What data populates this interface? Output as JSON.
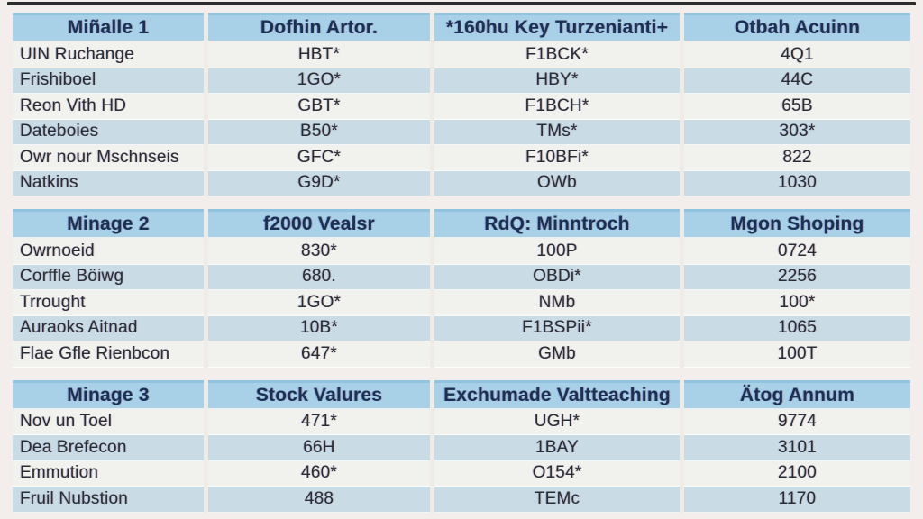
{
  "page": {
    "kind": "stacked-data-tables",
    "palette": {
      "header_bg": "#a8d1e7",
      "header_text": "#1b3055",
      "row_light_bg": "#f1f1ed",
      "row_blue_bg": "#c9dce5",
      "cell_text": "#272d36",
      "page_bg": "#f3eeec",
      "top_line": "#2d2c2c",
      "bottom_strip_bg": "#dfe9ee"
    }
  },
  "sections": [
    {
      "headers": [
        "Miñalle 1",
        "Dofhin Artor.",
        "*160hu Key Turzenianti+",
        "Otbah Acuinn"
      ],
      "rows": [
        [
          "UIN Ruchange",
          "HBT*",
          "F1BCK*",
          "4Q1"
        ],
        [
          "Frishiboel",
          "1GO*",
          "HBY*",
          "44C"
        ],
        [
          "Reon Vith HD",
          "GBT*",
          "F1BCH*",
          "65B"
        ],
        [
          "Dateboies",
          "B50*",
          "TMs*",
          "303*"
        ],
        [
          "Owr nour Mschnseis",
          "GFC*",
          "F10BFi*",
          "822"
        ],
        [
          "Natkins",
          "G9D*",
          "OWb",
          "1030"
        ]
      ]
    },
    {
      "headers": [
        "Minage 2",
        "f2000 Vealsr",
        "RdQ: Minntroch",
        "Mgon Shoping"
      ],
      "rows": [
        [
          "Owrnoeid",
          "830*",
          "100P",
          "0724"
        ],
        [
          "Corffle Böiwg",
          "680.",
          "OBDi*",
          "2256"
        ],
        [
          "Trrought",
          "1GO*",
          "NMb",
          "100*"
        ],
        [
          "Auraoks Aitnad",
          "10B*",
          "F1BSPii*",
          "1065"
        ],
        [
          "Flae Gfle Rienbcon",
          "647*",
          "GMb",
          "100T"
        ]
      ]
    },
    {
      "headers": [
        "Minage 3",
        "Stock Valures",
        "Exchumade Valtteaching",
        "Ätog Annum"
      ],
      "rows": [
        [
          "Nov un Toel",
          "471*",
          "UGH*",
          "9774"
        ],
        [
          "Dea Brefecon",
          "66H",
          "1BAY",
          "3101"
        ],
        [
          "Emmution",
          "460*",
          "O154*",
          "2100"
        ],
        [
          "Fruil Nubstion",
          "488",
          "TEMc",
          "1170"
        ]
      ]
    }
  ]
}
